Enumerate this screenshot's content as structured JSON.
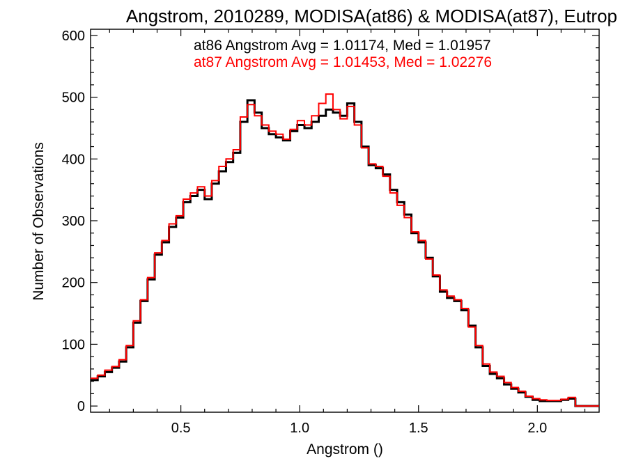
{
  "chart_data": {
    "type": "histogram",
    "title": "Angstrom, 2010289, MODISA(at86) & MODISA(at87), Eutrop",
    "xlabel": "Angstrom ()",
    "ylabel": "Number of Observations",
    "xlim": [
      0.12,
      2.26
    ],
    "ylim": [
      -10,
      610
    ],
    "xticks": [
      0.5,
      1.0,
      1.5,
      2.0
    ],
    "xtick_labels": [
      "0.5",
      "1.0",
      "1.5",
      "2.0"
    ],
    "yticks": [
      0,
      100,
      200,
      300,
      400,
      500,
      600
    ],
    "ytick_labels": [
      "0",
      "100",
      "200",
      "300",
      "400",
      "500",
      "600"
    ],
    "grid": false,
    "annotations": [
      {
        "text": "at86 Angstrom Avg = 1.01174, Med = 1.01957",
        "color": "#000000"
      },
      {
        "text": "at87 Angstrom Avg = 1.01453, Med = 1.02276",
        "color": "#ff0000"
      }
    ],
    "series": [
      {
        "color": "#000000",
        "x": [
          0.12,
          0.15,
          0.18,
          0.21,
          0.24,
          0.27,
          0.3,
          0.33,
          0.36,
          0.39,
          0.42,
          0.45,
          0.48,
          0.51,
          0.54,
          0.57,
          0.6,
          0.63,
          0.66,
          0.69,
          0.72,
          0.75,
          0.78,
          0.81,
          0.84,
          0.87,
          0.9,
          0.93,
          0.96,
          0.99,
          1.02,
          1.05,
          1.08,
          1.11,
          1.14,
          1.17,
          1.2,
          1.23,
          1.26,
          1.29,
          1.32,
          1.35,
          1.38,
          1.41,
          1.44,
          1.47,
          1.5,
          1.53,
          1.56,
          1.59,
          1.62,
          1.65,
          1.68,
          1.71,
          1.74,
          1.77,
          1.8,
          1.83,
          1.86,
          1.89,
          1.92,
          1.95,
          1.98,
          2.01,
          2.04,
          2.07,
          2.1,
          2.13,
          2.16,
          2.19,
          2.22,
          2.25
        ],
        "y": [
          42,
          48,
          55,
          62,
          72,
          95,
          135,
          170,
          205,
          245,
          265,
          290,
          305,
          330,
          340,
          350,
          335,
          360,
          380,
          395,
          410,
          460,
          495,
          475,
          450,
          440,
          435,
          430,
          445,
          455,
          450,
          460,
          470,
          480,
          475,
          470,
          490,
          460,
          420,
          390,
          385,
          375,
          350,
          330,
          310,
          280,
          265,
          240,
          210,
          185,
          175,
          170,
          155,
          130,
          95,
          65,
          52,
          45,
          35,
          28,
          22,
          15,
          10,
          8,
          8,
          8,
          10,
          12,
          0,
          0,
          0,
          0
        ]
      },
      {
        "color": "#ff0000",
        "x": [
          0.12,
          0.15,
          0.18,
          0.21,
          0.24,
          0.27,
          0.3,
          0.33,
          0.36,
          0.39,
          0.42,
          0.45,
          0.48,
          0.51,
          0.54,
          0.57,
          0.6,
          0.63,
          0.66,
          0.69,
          0.72,
          0.75,
          0.78,
          0.81,
          0.84,
          0.87,
          0.9,
          0.93,
          0.96,
          0.99,
          1.02,
          1.05,
          1.08,
          1.11,
          1.14,
          1.17,
          1.2,
          1.23,
          1.26,
          1.29,
          1.32,
          1.35,
          1.38,
          1.41,
          1.44,
          1.47,
          1.5,
          1.53,
          1.56,
          1.59,
          1.62,
          1.65,
          1.68,
          1.71,
          1.74,
          1.77,
          1.8,
          1.83,
          1.86,
          1.89,
          1.92,
          1.95,
          1.98,
          2.01,
          2.04,
          2.07,
          2.1,
          2.13,
          2.16,
          2.19,
          2.22,
          2.25
        ],
        "y": [
          45,
          50,
          58,
          64,
          75,
          98,
          138,
          172,
          208,
          248,
          268,
          295,
          308,
          335,
          345,
          355,
          340,
          365,
          388,
          400,
          415,
          468,
          488,
          470,
          455,
          445,
          440,
          432,
          448,
          462,
          455,
          470,
          490,
          505,
          480,
          465,
          485,
          455,
          418,
          392,
          388,
          372,
          345,
          325,
          305,
          282,
          268,
          238,
          212,
          188,
          178,
          172,
          158,
          128,
          98,
          68,
          55,
          48,
          38,
          30,
          24,
          16,
          12,
          10,
          9,
          9,
          11,
          14,
          0,
          0,
          0,
          0
        ]
      }
    ]
  }
}
